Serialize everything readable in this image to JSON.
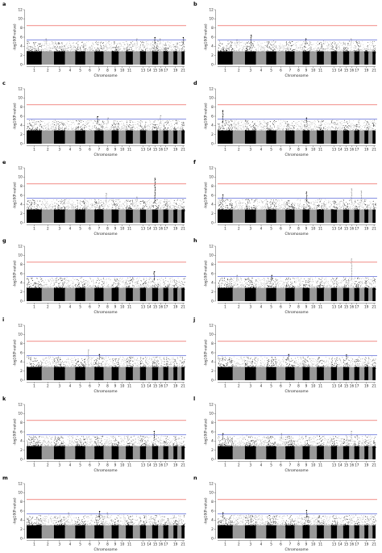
{
  "chart_data": [
    {
      "panel": "a",
      "type": "scatter",
      "xlabel": "Chromosome",
      "ylabel": "-log10(P-value)",
      "ylim": [
        0,
        12
      ],
      "yticks": [
        0,
        2,
        4,
        6,
        8,
        10,
        12
      ],
      "chromosomes": [
        "1",
        "2",
        "3",
        "4",
        "5",
        "6",
        "7",
        "8",
        "9",
        "10",
        "11",
        "12",
        "13",
        "14",
        "15",
        "16",
        "17",
        "18",
        "19",
        "20",
        "21"
      ],
      "chromosome_labels": [
        "1",
        "2",
        "3",
        "4",
        "5",
        "6",
        "7",
        "8",
        "9",
        "10",
        "11",
        "13",
        "14",
        "15",
        "16",
        "17",
        "19",
        "21"
      ],
      "significance_threshold": 8.5,
      "suggestive_threshold": 5.4,
      "peaks": [
        {
          "chr": "2",
          "y": 5.6
        },
        {
          "chr": "12",
          "y": 5.6
        },
        {
          "chr": "15",
          "y": 5.9
        },
        {
          "chr": "16",
          "y": 5.6
        },
        {
          "chr": "21",
          "y": 5.9
        }
      ],
      "point_colors": [
        "#000000",
        "#999999"
      ],
      "threshold_colors": {
        "significance": "#e8473f",
        "suggestive": "#3f4fcf"
      }
    },
    {
      "panel": "b",
      "type": "scatter",
      "xlabel": "Chromosome",
      "ylabel": "-log10(P-value)",
      "ylim": [
        0,
        12
      ],
      "yticks": [
        0,
        2,
        4,
        6,
        8,
        10,
        12
      ],
      "chromosomes": [
        "1",
        "2",
        "3",
        "4",
        "5",
        "6",
        "7",
        "8",
        "9",
        "10",
        "11",
        "12",
        "13",
        "14",
        "15",
        "16",
        "17",
        "18",
        "19",
        "20",
        "21"
      ],
      "chromosome_labels": [
        "1",
        "2",
        "3",
        "4",
        "5",
        "6",
        "7",
        "8",
        "9",
        "10",
        "11",
        "13",
        "14",
        "15",
        "16",
        "17",
        "19",
        "21"
      ],
      "significance_threshold": 8.5,
      "suggestive_threshold": 5.4,
      "peaks": [
        {
          "chr": "2",
          "y": 5.4
        },
        {
          "chr": "3",
          "y": 6.4
        },
        {
          "chr": "9",
          "y": 5.6
        },
        {
          "chr": "16",
          "y": 5.6
        }
      ],
      "point_colors": [
        "#000000",
        "#999999"
      ],
      "threshold_colors": {
        "significance": "#e8473f",
        "suggestive": "#3f4fcf"
      }
    },
    {
      "panel": "c",
      "type": "scatter",
      "xlabel": "Chromosome",
      "ylabel": "-log10(P-value)",
      "ylim": [
        0,
        12
      ],
      "yticks": [
        0,
        2,
        4,
        6,
        8,
        10,
        12
      ],
      "chromosomes": [
        "1",
        "2",
        "3",
        "4",
        "5",
        "6",
        "7",
        "8",
        "9",
        "10",
        "11",
        "12",
        "13",
        "14",
        "15",
        "16",
        "17",
        "18",
        "19",
        "20",
        "21"
      ],
      "chromosome_labels": [
        "1",
        "2",
        "3",
        "4",
        "5",
        "6",
        "7",
        "8",
        "9",
        "10",
        "11",
        "13",
        "14",
        "15",
        "16",
        "17",
        "19",
        "21"
      ],
      "significance_threshold": 8.5,
      "suggestive_threshold": 5.4,
      "peaks": [
        {
          "chr": "7",
          "y": 5.9
        },
        {
          "chr": "8",
          "y": 5.6
        },
        {
          "chr": "16",
          "y": 6.1
        }
      ],
      "point_colors": [
        "#000000",
        "#999999"
      ],
      "threshold_colors": {
        "significance": "#e8473f",
        "suggestive": "#3f4fcf"
      }
    },
    {
      "panel": "d",
      "type": "scatter",
      "xlabel": "Chromosome",
      "ylabel": "-log10(P-value)",
      "ylim": [
        0,
        12
      ],
      "yticks": [
        0,
        2,
        4,
        6,
        8,
        10,
        12
      ],
      "chromosomes": [
        "1",
        "2",
        "3",
        "4",
        "5",
        "6",
        "7",
        "8",
        "9",
        "10",
        "11",
        "12",
        "13",
        "14",
        "15",
        "16",
        "17",
        "18",
        "19",
        "20",
        "21"
      ],
      "chromosome_labels": [
        "1",
        "2",
        "3",
        "4",
        "5",
        "6",
        "7",
        "8",
        "9",
        "10",
        "11",
        "13",
        "14",
        "15",
        "16",
        "17",
        "19",
        "21"
      ],
      "significance_threshold": 8.5,
      "suggestive_threshold": 5.4,
      "peaks": [
        {
          "chr": "1",
          "y": 7.2
        },
        {
          "chr": "9",
          "y": 5.6
        }
      ],
      "point_colors": [
        "#000000",
        "#999999"
      ],
      "threshold_colors": {
        "significance": "#e8473f",
        "suggestive": "#3f4fcf"
      }
    },
    {
      "panel": "e",
      "type": "scatter",
      "xlabel": "Chromosome",
      "ylabel": "-log10(P-value)",
      "ylim": [
        0,
        12
      ],
      "yticks": [
        0,
        2,
        4,
        6,
        8,
        10,
        12
      ],
      "chromosomes": [
        "1",
        "2",
        "3",
        "4",
        "5",
        "6",
        "7",
        "8",
        "9",
        "10",
        "11",
        "12",
        "13",
        "14",
        "15",
        "16",
        "17",
        "18",
        "19",
        "20",
        "21"
      ],
      "chromosome_labels": [
        "1",
        "2",
        "3",
        "4",
        "5",
        "6",
        "7",
        "8",
        "9",
        "10",
        "11",
        "13",
        "14",
        "15",
        "16",
        "17",
        "19",
        "21"
      ],
      "significance_threshold": 8.5,
      "suggestive_threshold": 5.4,
      "peaks": [
        {
          "chr": "8",
          "y": 6.4
        },
        {
          "chr": "12",
          "y": 5.6
        },
        {
          "chr": "15",
          "y": 9.7
        }
      ],
      "point_colors": [
        "#000000",
        "#999999"
      ],
      "threshold_colors": {
        "significance": "#e8473f",
        "suggestive": "#3f4fcf"
      }
    },
    {
      "panel": "f",
      "type": "scatter",
      "xlabel": "Chromosome",
      "ylabel": "-log10(P-value)",
      "ylim": [
        0,
        12
      ],
      "yticks": [
        0,
        2,
        4,
        6,
        8,
        10,
        12
      ],
      "chromosomes": [
        "1",
        "2",
        "3",
        "4",
        "5",
        "6",
        "7",
        "8",
        "9",
        "10",
        "11",
        "12",
        "13",
        "14",
        "15",
        "16",
        "17",
        "18",
        "19",
        "20",
        "21"
      ],
      "chromosome_labels": [
        "1",
        "2",
        "3",
        "4",
        "5",
        "6",
        "7",
        "8",
        "9",
        "10",
        "11",
        "13",
        "14",
        "15",
        "16",
        "17",
        "19",
        "21"
      ],
      "significance_threshold": 8.5,
      "suggestive_threshold": 5.4,
      "peaks": [
        {
          "chr": "1",
          "y": 6.1
        },
        {
          "chr": "9",
          "y": 6.7
        },
        {
          "chr": "16",
          "y": 7.4
        },
        {
          "chr": "18",
          "y": 6.9
        }
      ],
      "point_colors": [
        "#000000",
        "#999999"
      ],
      "threshold_colors": {
        "significance": "#e8473f",
        "suggestive": "#3f4fcf"
      }
    },
    {
      "panel": "g",
      "type": "scatter",
      "xlabel": "Chromosome",
      "ylabel": "-log10(P-value)",
      "ylim": [
        0,
        12
      ],
      "yticks": [
        0,
        2,
        4,
        6,
        8,
        10,
        12
      ],
      "chromosomes": [
        "1",
        "2",
        "3",
        "4",
        "5",
        "6",
        "7",
        "8",
        "9",
        "10",
        "11",
        "12",
        "13",
        "14",
        "15",
        "16",
        "17",
        "18",
        "19",
        "20",
        "21"
      ],
      "chromosome_labels": [
        "1",
        "2",
        "3",
        "4",
        "5",
        "6",
        "7",
        "8",
        "9",
        "10",
        "11",
        "13",
        "14",
        "15",
        "16",
        "17",
        "19",
        "21"
      ],
      "significance_threshold": 8.5,
      "suggestive_threshold": 5.4,
      "peaks": [
        {
          "chr": "15",
          "y": 6.4
        }
      ],
      "point_colors": [
        "#000000",
        "#999999"
      ],
      "threshold_colors": {
        "significance": "#e8473f",
        "suggestive": "#3f4fcf"
      }
    },
    {
      "panel": "h",
      "type": "scatter",
      "xlabel": "Chromosome",
      "ylabel": "-log10(P-value)",
      "ylim": [
        0,
        12
      ],
      "yticks": [
        0,
        2,
        4,
        6,
        8,
        10,
        12
      ],
      "chromosomes": [
        "1",
        "2",
        "3",
        "4",
        "5",
        "6",
        "7",
        "8",
        "9",
        "10",
        "11",
        "12",
        "13",
        "14",
        "15",
        "16",
        "17",
        "18",
        "19",
        "20",
        "21"
      ],
      "chromosome_labels": [
        "1",
        "2",
        "3",
        "4",
        "5",
        "6",
        "7",
        "8",
        "9",
        "10",
        "11",
        "13",
        "14",
        "15",
        "16",
        "17",
        "19",
        "21"
      ],
      "significance_threshold": 8.5,
      "suggestive_threshold": 5.4,
      "peaks": [
        {
          "chr": "2",
          "y": 5.6
        },
        {
          "chr": "5",
          "y": 5.6
        },
        {
          "chr": "16",
          "y": 9.2
        }
      ],
      "point_colors": [
        "#000000",
        "#999999"
      ],
      "threshold_colors": {
        "significance": "#e8473f",
        "suggestive": "#3f4fcf"
      }
    },
    {
      "panel": "i",
      "type": "scatter",
      "xlabel": "Chromosome",
      "ylabel": "-log10(P-value)",
      "ylim": [
        0,
        12
      ],
      "yticks": [
        0,
        2,
        4,
        6,
        8,
        10,
        12
      ],
      "chromosomes": [
        "1",
        "2",
        "3",
        "4",
        "5",
        "6",
        "7",
        "8",
        "9",
        "10",
        "11",
        "12",
        "13",
        "14",
        "15",
        "16",
        "17",
        "18",
        "19",
        "20",
        "21"
      ],
      "chromosome_labels": [
        "1",
        "2",
        "3",
        "4",
        "5",
        "6",
        "7",
        "8",
        "9",
        "10",
        "11",
        "13",
        "14",
        "15",
        "16",
        "17",
        "19",
        "21"
      ],
      "significance_threshold": 8.5,
      "suggestive_threshold": 5.4,
      "peaks": [
        {
          "chr": "6",
          "y": 6.6
        },
        {
          "chr": "7",
          "y": 5.6
        }
      ],
      "point_colors": [
        "#000000",
        "#999999"
      ],
      "threshold_colors": {
        "significance": "#e8473f",
        "suggestive": "#3f4fcf"
      }
    },
    {
      "panel": "j",
      "type": "scatter",
      "xlabel": "Chromosome",
      "ylabel": "-log10(P-value)",
      "ylim": [
        0,
        12
      ],
      "yticks": [
        0,
        2,
        4,
        6,
        8,
        10,
        12
      ],
      "chromosomes": [
        "1",
        "2",
        "3",
        "4",
        "5",
        "6",
        "7",
        "8",
        "9",
        "10",
        "11",
        "12",
        "13",
        "14",
        "15",
        "16",
        "17",
        "18",
        "19",
        "20",
        "21"
      ],
      "chromosome_labels": [
        "1",
        "2",
        "3",
        "4",
        "5",
        "6",
        "7",
        "8",
        "9",
        "10",
        "11",
        "13",
        "14",
        "15",
        "16",
        "17",
        "19",
        "21"
      ],
      "significance_threshold": 8.5,
      "suggestive_threshold": 5.4,
      "peaks": [
        {
          "chr": "7",
          "y": 5.6
        },
        {
          "chr": "15",
          "y": 5.5
        }
      ],
      "point_colors": [
        "#000000",
        "#999999"
      ],
      "threshold_colors": {
        "significance": "#e8473f",
        "suggestive": "#3f4fcf"
      }
    },
    {
      "panel": "k",
      "type": "scatter",
      "xlabel": "Chromosome",
      "ylabel": "-log10(P-value)",
      "ylim": [
        0,
        12
      ],
      "yticks": [
        0,
        2,
        4,
        6,
        8,
        10,
        12
      ],
      "chromosomes": [
        "1",
        "2",
        "3",
        "4",
        "5",
        "6",
        "7",
        "8",
        "9",
        "10",
        "11",
        "12",
        "13",
        "14",
        "15",
        "16",
        "17",
        "18",
        "19",
        "20",
        "21"
      ],
      "chromosome_labels": [
        "1",
        "2",
        "3",
        "4",
        "5",
        "6",
        "7",
        "8",
        "9",
        "10",
        "11",
        "13",
        "14",
        "15",
        "16",
        "17",
        "19",
        "21"
      ],
      "significance_threshold": 8.5,
      "suggestive_threshold": 5.4,
      "peaks": [
        {
          "chr": "15",
          "y": 6.1
        }
      ],
      "point_colors": [
        "#000000",
        "#999999"
      ],
      "threshold_colors": {
        "significance": "#e8473f",
        "suggestive": "#3f4fcf"
      }
    },
    {
      "panel": "l",
      "type": "scatter",
      "xlabel": "Chromosome",
      "ylabel": "-log10(P-value)",
      "ylim": [
        0,
        12
      ],
      "yticks": [
        0,
        2,
        4,
        6,
        8,
        10,
        12
      ],
      "chromosomes": [
        "1",
        "2",
        "3",
        "4",
        "5",
        "6",
        "7",
        "8",
        "9",
        "10",
        "11",
        "12",
        "13",
        "14",
        "15",
        "16",
        "17",
        "18",
        "19",
        "20",
        "21"
      ],
      "chromosome_labels": [
        "1",
        "2",
        "3",
        "4",
        "5",
        "6",
        "7",
        "8",
        "9",
        "10",
        "11",
        "13",
        "14",
        "15",
        "16",
        "17",
        "19",
        "21"
      ],
      "significance_threshold": 8.5,
      "suggestive_threshold": 5.4,
      "peaks": [
        {
          "chr": "1",
          "y": 5.6
        },
        {
          "chr": "6",
          "y": 5.6
        },
        {
          "chr": "16",
          "y": 6.1
        }
      ],
      "point_colors": [
        "#000000",
        "#999999"
      ],
      "threshold_colors": {
        "significance": "#e8473f",
        "suggestive": "#3f4fcf"
      }
    },
    {
      "panel": "m",
      "type": "scatter",
      "xlabel": "Chromosome",
      "ylabel": "-log10(P-value)",
      "ylim": [
        0,
        12
      ],
      "yticks": [
        0,
        2,
        4,
        6,
        8,
        10,
        12
      ],
      "chromosomes": [
        "1",
        "2",
        "3",
        "4",
        "5",
        "6",
        "7",
        "8",
        "9",
        "10",
        "11",
        "12",
        "13",
        "14",
        "15",
        "16",
        "17",
        "18",
        "19",
        "20",
        "21"
      ],
      "chromosome_labels": [
        "1",
        "2",
        "3",
        "4",
        "5",
        "6",
        "7",
        "8",
        "9",
        "10",
        "11",
        "13",
        "14",
        "15",
        "16",
        "17",
        "19",
        "21"
      ],
      "significance_threshold": 8.5,
      "suggestive_threshold": 5.4,
      "peaks": [
        {
          "chr": "4",
          "y": 5.6
        },
        {
          "chr": "7",
          "y": 5.9
        },
        {
          "chr": "8",
          "y": 5.6
        }
      ],
      "point_colors": [
        "#000000",
        "#999999"
      ],
      "threshold_colors": {
        "significance": "#e8473f",
        "suggestive": "#3f4fcf"
      }
    },
    {
      "panel": "n",
      "type": "scatter",
      "xlabel": "Chromosome",
      "ylabel": "-log10(P-value)",
      "ylim": [
        0,
        12
      ],
      "yticks": [
        0,
        2,
        4,
        6,
        8,
        10,
        12
      ],
      "chromosomes": [
        "1",
        "2",
        "3",
        "4",
        "5",
        "6",
        "7",
        "8",
        "9",
        "10",
        "11",
        "12",
        "13",
        "14",
        "15",
        "16",
        "17",
        "18",
        "19",
        "20",
        "21"
      ],
      "chromosome_labels": [
        "1",
        "2",
        "3",
        "4",
        "5",
        "6",
        "7",
        "8",
        "9",
        "10",
        "11",
        "13",
        "14",
        "15",
        "16",
        "17",
        "19",
        "21"
      ],
      "significance_threshold": 8.5,
      "suggestive_threshold": 5.4,
      "peaks": [
        {
          "chr": "1",
          "y": 5.6
        },
        {
          "chr": "9",
          "y": 6.1
        }
      ],
      "point_colors": [
        "#000000",
        "#999999"
      ],
      "threshold_colors": {
        "significance": "#e8473f",
        "suggestive": "#3f4fcf"
      }
    }
  ]
}
